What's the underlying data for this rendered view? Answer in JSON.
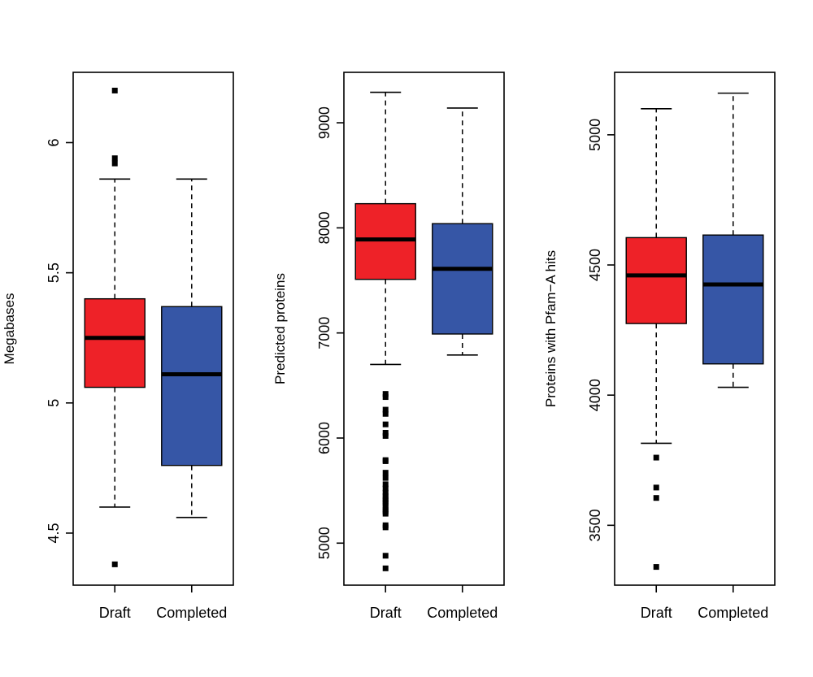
{
  "colors": {
    "draft_fill": "#ee2228",
    "completed_fill": "#3656a6",
    "stroke": "#000000",
    "background": "#ffffff"
  },
  "chart_data": [
    {
      "type": "boxplot",
      "ylabel": "Megabases",
      "categories": [
        "Draft",
        "Completed"
      ],
      "yticks": [
        4.5,
        5.0,
        5.5,
        6.0
      ],
      "ylim": [
        4.3,
        6.27
      ],
      "boxes": [
        {
          "category": "Draft",
          "whisker_low": 4.6,
          "q1": 5.06,
          "median": 5.25,
          "q3": 5.4,
          "whisker_high": 5.86,
          "outliers": [
            6.2,
            5.94,
            5.92,
            4.38
          ]
        },
        {
          "category": "Completed",
          "whisker_low": 4.56,
          "q1": 4.76,
          "median": 5.11,
          "q3": 5.37,
          "whisker_high": 5.86,
          "outliers": []
        }
      ]
    },
    {
      "type": "boxplot",
      "ylabel": "Predicted proteins",
      "categories": [
        "Draft",
        "Completed"
      ],
      "yticks": [
        5000,
        6000,
        7000,
        8000,
        9000
      ],
      "ylim": [
        4600,
        9480
      ],
      "boxes": [
        {
          "category": "Draft",
          "whisker_low": 6700,
          "q1": 7510,
          "median": 7890,
          "q3": 8230,
          "whisker_high": 9290,
          "outliers": [
            6420,
            6390,
            6270,
            6230,
            6130,
            6050,
            6020,
            5790,
            5780,
            5670,
            5620,
            5560,
            5520,
            5480,
            5450,
            5420,
            5400,
            5380,
            5350,
            5320,
            5300,
            5280,
            5170,
            5150,
            4880,
            4760
          ]
        },
        {
          "category": "Completed",
          "whisker_low": 6790,
          "q1": 6990,
          "median": 7610,
          "q3": 8040,
          "whisker_high": 9140,
          "outliers": []
        }
      ]
    },
    {
      "type": "boxplot",
      "ylabel": "Proteins with Pfam−A hits",
      "categories": [
        "Draft",
        "Completed"
      ],
      "yticks": [
        3500,
        4000,
        4500,
        5000
      ],
      "ylim": [
        3270,
        5240
      ],
      "boxes": [
        {
          "category": "Draft",
          "whisker_low": 3815,
          "q1": 4275,
          "median": 4460,
          "q3": 4605,
          "whisker_high": 5100,
          "outliers": [
            3760,
            3645,
            3605,
            3340
          ]
        },
        {
          "category": "Completed",
          "whisker_low": 4030,
          "q1": 4120,
          "median": 4425,
          "q3": 4615,
          "whisker_high": 5160,
          "outliers": []
        }
      ]
    }
  ]
}
